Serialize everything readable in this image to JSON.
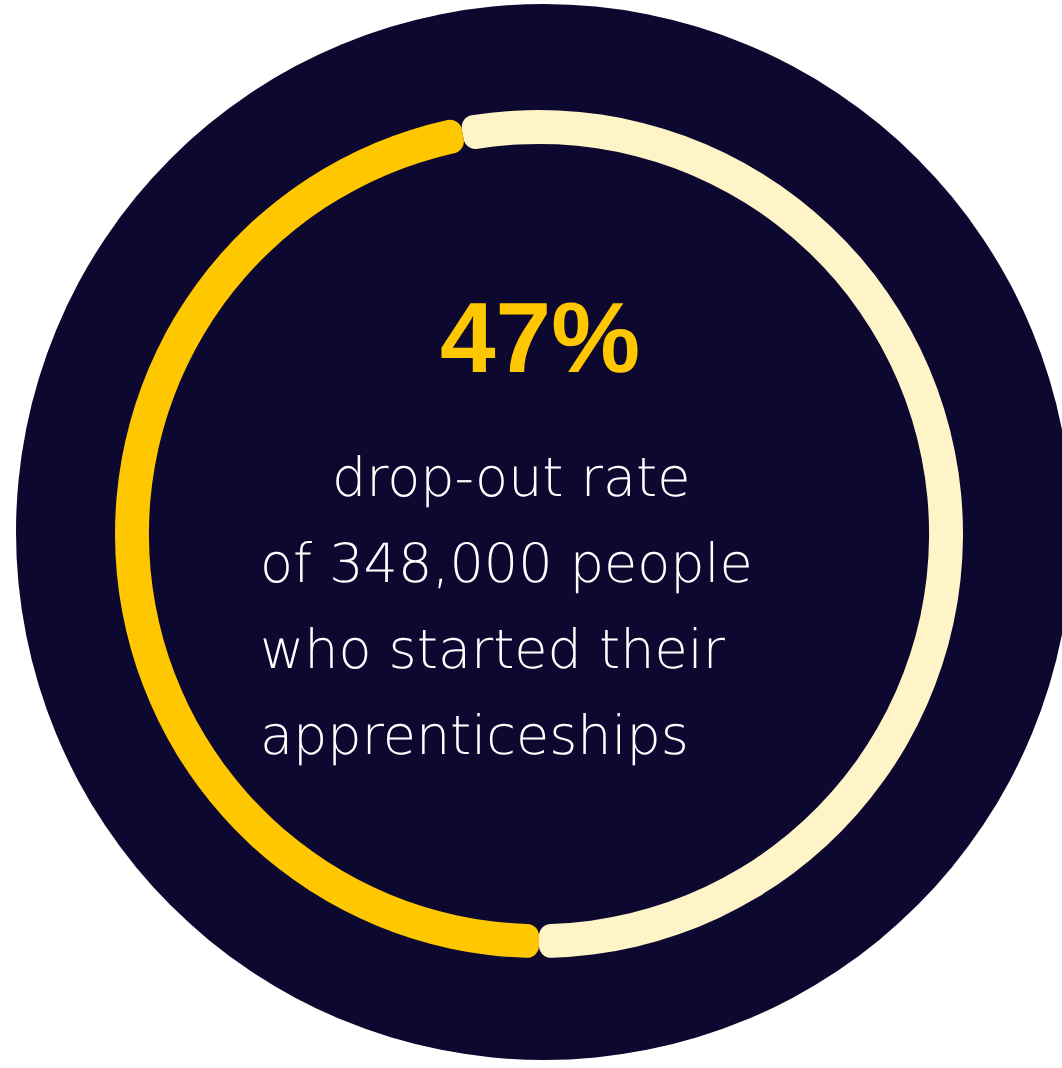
{
  "chart_data": {
    "type": "donut",
    "title": "47%",
    "categories": [
      null,
      null
    ],
    "values": [
      47,
      53
    ],
    "colors": [
      "#ffc700",
      "#fff4c8"
    ],
    "annotations": [
      "drop-out rate",
      "of 348,000 people",
      "who started their",
      "apprenticeships"
    ]
  }
}
